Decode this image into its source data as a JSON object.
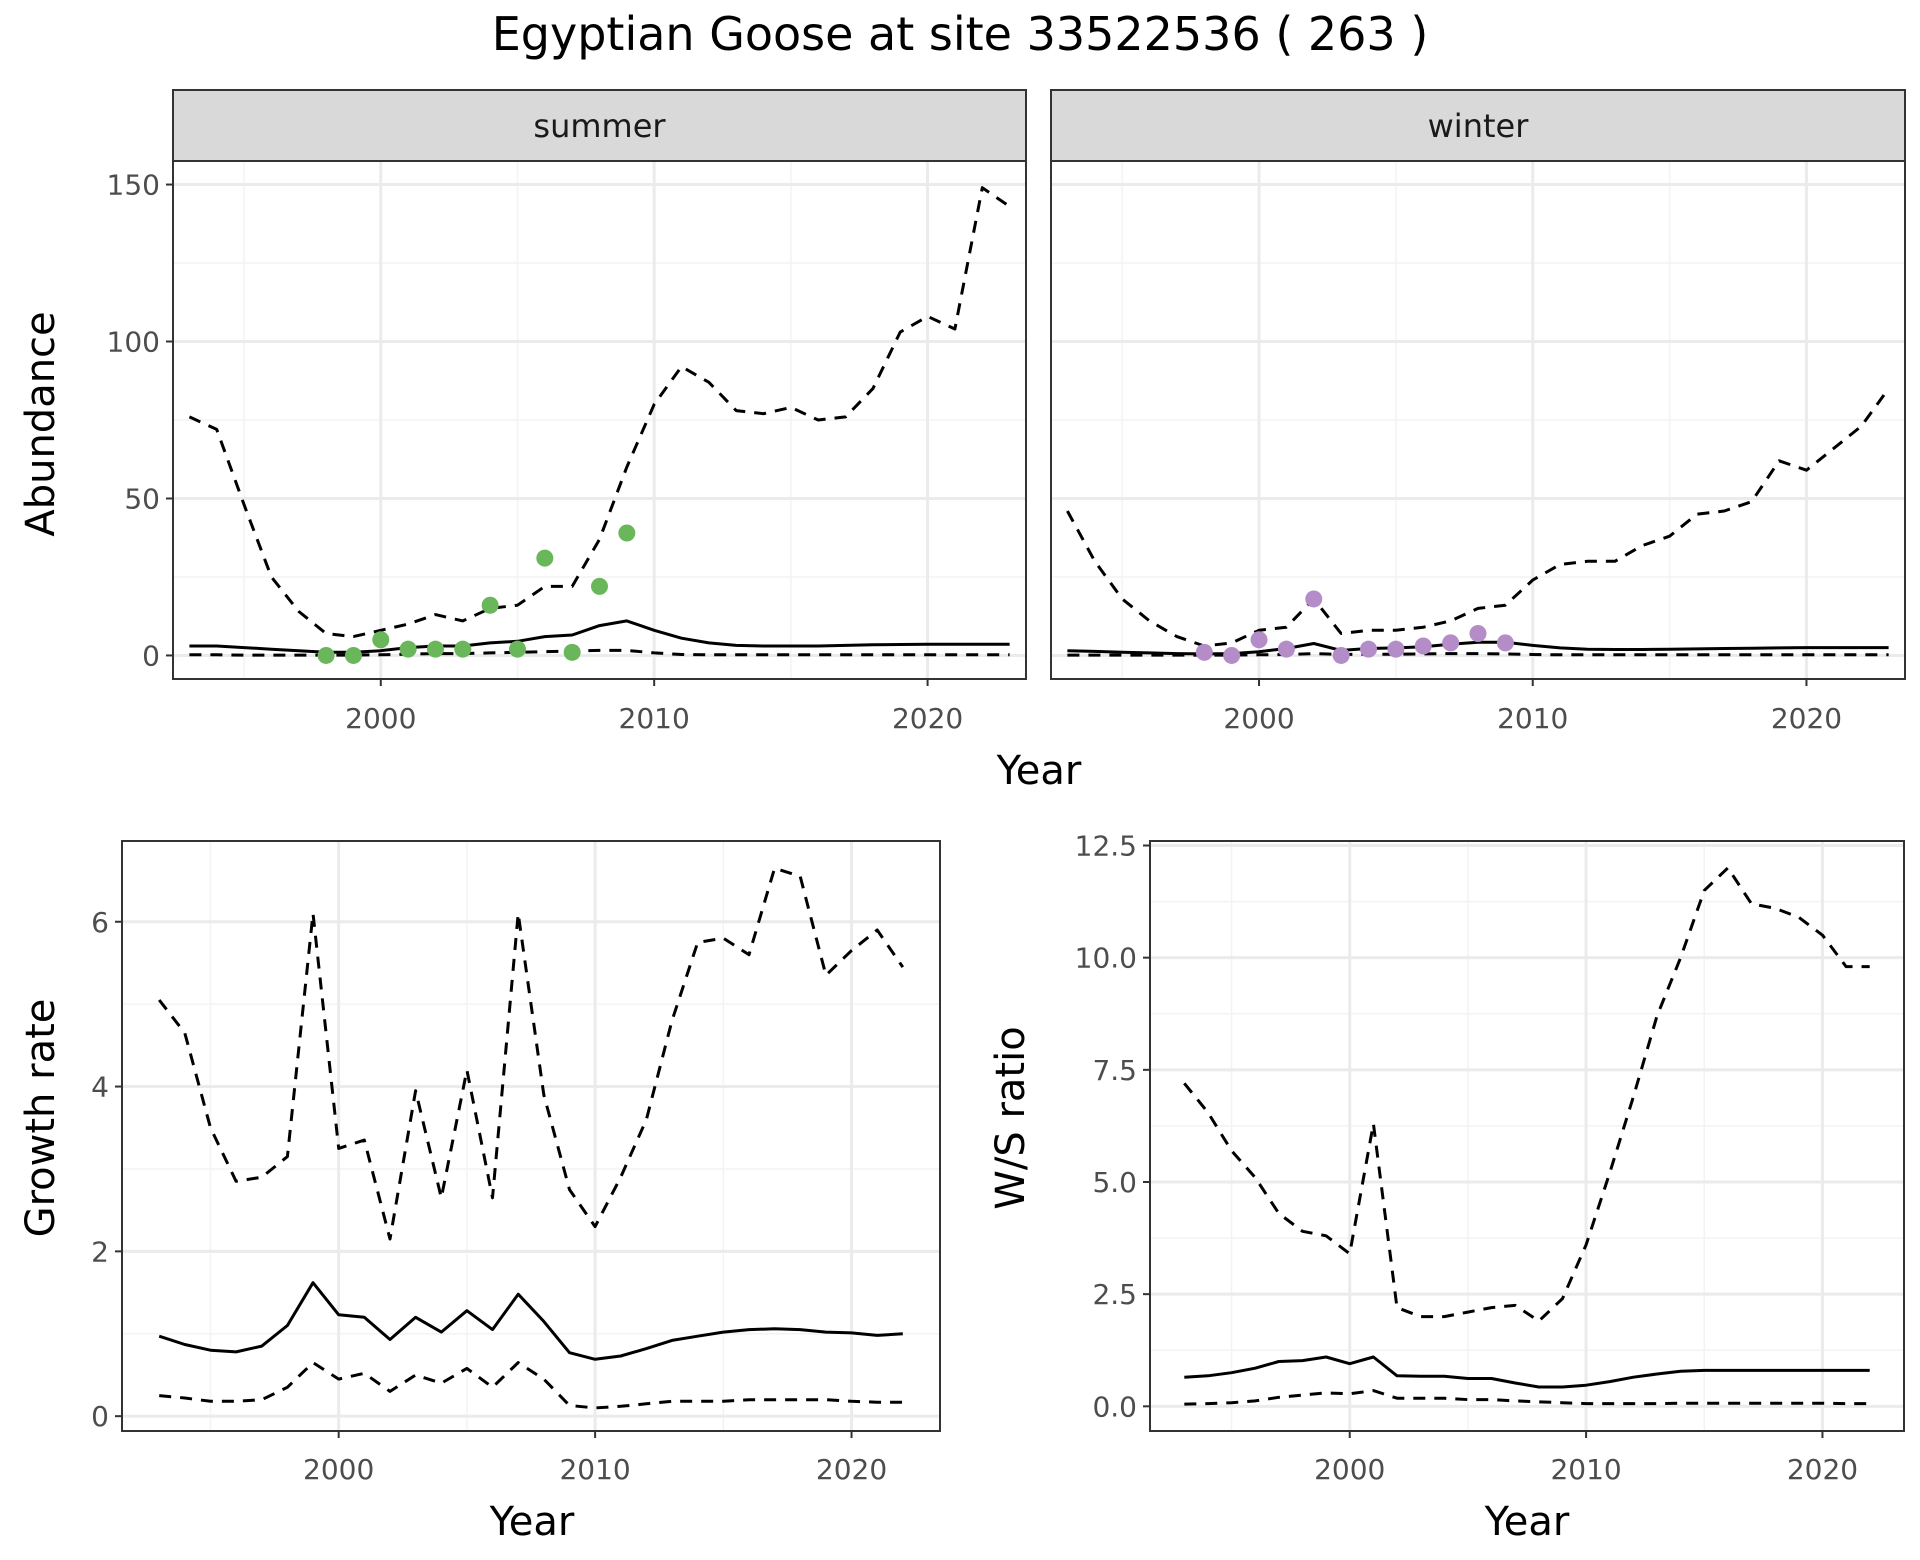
{
  "figure": {
    "title": "Egyptian Goose at site 33522536 ( 263 )"
  },
  "colors": {
    "summer_points": "#6ab65a",
    "winter_points": "#b48cc8",
    "line": "#000000",
    "strip_fill": "#d9d9d9",
    "grid_major": "#ebebeb",
    "grid_minor": "#f3f3f3"
  },
  "chart_data": [
    {
      "id": "summer",
      "type": "line",
      "strip_label": "summer",
      "xlabel": "Year",
      "ylabel": "Abundance",
      "xlim": [
        1992.4,
        2023.6
      ],
      "ylim": [
        -7.5,
        157.5
      ],
      "x_ticks": [
        2000,
        2010,
        2020
      ],
      "y_ticks": [
        0,
        50,
        100,
        150
      ],
      "grid": true,
      "series": [
        {
          "style": "solid",
          "x": [
            1993,
            1994,
            1995,
            1996,
            1997,
            1998,
            1999,
            2000,
            2001,
            2002,
            2003,
            2004,
            2005,
            2006,
            2007,
            2008,
            2009,
            2010,
            2011,
            2012,
            2013,
            2014,
            2015,
            2016,
            2017,
            2018,
            2019,
            2020,
            2021,
            2022,
            2023
          ],
          "values": [
            3,
            3,
            2.5,
            2,
            1.5,
            1,
            1,
            1.5,
            2.5,
            3,
            3,
            4,
            4.5,
            6,
            6.5,
            9.5,
            11,
            8,
            5.5,
            4,
            3.2,
            3,
            3,
            3,
            3.2,
            3.4,
            3.5,
            3.6,
            3.6,
            3.6,
            3.6
          ]
        },
        {
          "style": "dashed",
          "x": [
            1993,
            1994,
            1995,
            1996,
            1997,
            1998,
            1999,
            2000,
            2001,
            2002,
            2003,
            2004,
            2005,
            2006,
            2007,
            2008,
            2009,
            2010,
            2011,
            2012,
            2013,
            2014,
            2015,
            2016,
            2017,
            2018,
            2019,
            2020,
            2021,
            2022,
            2023
          ],
          "values": [
            76,
            72,
            48,
            25,
            14,
            7,
            6,
            8,
            10,
            13,
            11,
            15,
            16,
            22,
            22,
            37,
            60,
            80,
            92,
            87,
            78,
            77,
            79,
            75,
            76,
            85,
            103,
            108,
            104,
            149,
            143
          ]
        },
        {
          "style": "dashed",
          "x": [
            1993,
            1994,
            1995,
            1996,
            1997,
            1998,
            1999,
            2000,
            2001,
            2002,
            2003,
            2004,
            2005,
            2006,
            2007,
            2008,
            2009,
            2010,
            2011,
            2012,
            2013,
            2014,
            2015,
            2016,
            2017,
            2018,
            2019,
            2020,
            2021,
            2022,
            2023
          ],
          "values": [
            0.2,
            0.2,
            0.1,
            0.1,
            0.1,
            0.1,
            0.1,
            0.2,
            0.4,
            0.6,
            0.6,
            0.8,
            1,
            1.2,
            1.4,
            1.6,
            1.6,
            0.8,
            0.3,
            0.2,
            0.2,
            0.2,
            0.2,
            0.2,
            0.2,
            0.2,
            0.2,
            0.2,
            0.2,
            0.2,
            0.2
          ]
        },
        {
          "style": "points",
          "color_key": "summer_points",
          "x": [
            1998,
            1999,
            2000,
            2001,
            2002,
            2003,
            2004,
            2005,
            2006,
            2007,
            2008,
            2009
          ],
          "values": [
            0,
            0,
            5,
            2,
            2,
            2,
            16,
            2,
            31,
            1,
            22,
            39
          ]
        }
      ]
    },
    {
      "id": "winter",
      "type": "line",
      "strip_label": "winter",
      "xlabel": "Year",
      "ylabel": "Abundance",
      "xlim": [
        1992.4,
        2023.6
      ],
      "ylim": [
        -7.5,
        157.5
      ],
      "x_ticks": [
        2000,
        2010,
        2020
      ],
      "y_ticks": [
        0,
        50,
        100,
        150
      ],
      "grid": true,
      "series": [
        {
          "style": "solid",
          "x": [
            1993,
            1994,
            1995,
            1996,
            1997,
            1998,
            1999,
            2000,
            2001,
            2002,
            2003,
            2004,
            2005,
            2006,
            2007,
            2008,
            2009,
            2010,
            2011,
            2012,
            2013,
            2014,
            2015,
            2016,
            2017,
            2018,
            2019,
            2020,
            2021,
            2022,
            2023
          ],
          "values": [
            1.5,
            1.3,
            1,
            0.8,
            0.6,
            0.5,
            0.6,
            1.2,
            2.2,
            3.8,
            1.6,
            2.2,
            2.4,
            2.8,
            3.6,
            4.2,
            4.2,
            3.2,
            2.4,
            2,
            1.9,
            1.9,
            2,
            2.1,
            2.2,
            2.3,
            2.4,
            2.5,
            2.5,
            2.5,
            2.5
          ]
        },
        {
          "style": "dashed",
          "x": [
            1993,
            1994,
            1995,
            1996,
            1997,
            1998,
            1999,
            2000,
            2001,
            2002,
            2003,
            2004,
            2005,
            2006,
            2007,
            2008,
            2009,
            2010,
            2011,
            2012,
            2013,
            2014,
            2015,
            2016,
            2017,
            2018,
            2019,
            2020,
            2021,
            2022,
            2023
          ],
          "values": [
            46,
            30,
            18,
            11,
            6,
            3,
            4,
            8,
            9,
            18,
            7,
            8,
            8,
            9,
            11,
            15,
            16,
            24,
            29,
            30,
            30,
            35,
            38,
            45,
            46,
            49,
            62,
            59,
            66,
            73,
            85
          ]
        },
        {
          "style": "dashed",
          "x": [
            1993,
            1994,
            1995,
            1996,
            1997,
            1998,
            1999,
            2000,
            2001,
            2002,
            2003,
            2004,
            2005,
            2006,
            2007,
            2008,
            2009,
            2010,
            2011,
            2012,
            2013,
            2014,
            2015,
            2016,
            2017,
            2018,
            2019,
            2020,
            2021,
            2022,
            2023
          ],
          "values": [
            0.1,
            0.1,
            0.1,
            0.1,
            0.1,
            0.1,
            0.1,
            0.2,
            0.3,
            0.6,
            0.3,
            0.4,
            0.4,
            0.5,
            0.6,
            0.6,
            0.5,
            0.3,
            0.2,
            0.2,
            0.2,
            0.2,
            0.2,
            0.2,
            0.2,
            0.2,
            0.2,
            0.2,
            0.2,
            0.2,
            0.2
          ]
        },
        {
          "style": "points",
          "color_key": "winter_points",
          "x": [
            1998,
            1999,
            2000,
            2001,
            2002,
            2003,
            2004,
            2005,
            2006,
            2007,
            2008,
            2009
          ],
          "values": [
            1,
            0,
            5,
            2,
            18,
            0,
            2,
            2,
            3,
            4,
            7,
            4
          ]
        }
      ]
    },
    {
      "id": "growth",
      "type": "line",
      "xlabel": "Year",
      "ylabel": "Growth rate",
      "xlim": [
        1991.55,
        2023.45
      ],
      "ylim": [
        -0.18,
        6.98
      ],
      "x_ticks": [
        2000,
        2010,
        2020
      ],
      "y_ticks": [
        0,
        2,
        4,
        6
      ],
      "grid": true,
      "series": [
        {
          "style": "solid",
          "x": [
            1993,
            1994,
            1995,
            1996,
            1997,
            1998,
            1999,
            2000,
            2001,
            2002,
            2003,
            2004,
            2005,
            2006,
            2007,
            2008,
            2009,
            2010,
            2011,
            2012,
            2013,
            2014,
            2015,
            2016,
            2017,
            2018,
            2019,
            2020,
            2021,
            2022
          ],
          "values": [
            0.97,
            0.87,
            0.8,
            0.78,
            0.85,
            1.1,
            1.62,
            1.23,
            1.2,
            0.93,
            1.2,
            1.02,
            1.28,
            1.05,
            1.48,
            1.15,
            0.77,
            0.69,
            0.73,
            0.82,
            0.92,
            0.97,
            1.02,
            1.05,
            1.06,
            1.05,
            1.02,
            1.01,
            0.98,
            1.0
          ]
        },
        {
          "style": "dashed",
          "x": [
            1993,
            1994,
            1995,
            1996,
            1997,
            1998,
            1999,
            2000,
            2001,
            2002,
            2003,
            2004,
            2005,
            2006,
            2007,
            2008,
            2009,
            2010,
            2011,
            2012,
            2013,
            2014,
            2015,
            2016,
            2017,
            2018,
            2019,
            2020,
            2021,
            2022
          ],
          "values": [
            5.05,
            4.65,
            3.5,
            2.85,
            2.9,
            3.15,
            6.1,
            3.25,
            3.35,
            2.15,
            3.95,
            2.65,
            4.2,
            2.65,
            6.1,
            3.9,
            2.75,
            2.3,
            2.9,
            3.6,
            4.8,
            5.75,
            5.8,
            5.6,
            6.65,
            6.55,
            5.35,
            5.65,
            5.9,
            5.45
          ]
        },
        {
          "style": "dashed",
          "x": [
            1993,
            1994,
            1995,
            1996,
            1997,
            1998,
            1999,
            2000,
            2001,
            2002,
            2003,
            2004,
            2005,
            2006,
            2007,
            2008,
            2009,
            2010,
            2011,
            2012,
            2013,
            2014,
            2015,
            2016,
            2017,
            2018,
            2019,
            2020,
            2021,
            2022
          ],
          "values": [
            0.25,
            0.22,
            0.18,
            0.18,
            0.2,
            0.35,
            0.65,
            0.45,
            0.52,
            0.3,
            0.5,
            0.4,
            0.58,
            0.35,
            0.65,
            0.45,
            0.13,
            0.1,
            0.12,
            0.15,
            0.18,
            0.18,
            0.18,
            0.2,
            0.2,
            0.2,
            0.2,
            0.18,
            0.17,
            0.17
          ]
        }
      ]
    },
    {
      "id": "ws_ratio",
      "type": "line",
      "xlabel": "Year",
      "ylabel": "W/S ratio",
      "xlim": [
        1991.55,
        2023.45
      ],
      "ylim": [
        -0.55,
        12.6
      ],
      "x_ticks": [
        2000,
        2010,
        2020
      ],
      "y_ticks": [
        0.0,
        2.5,
        5.0,
        7.5,
        10.0,
        12.5
      ],
      "y_tick_labels": [
        "0.0",
        "2.5",
        "5.0",
        "7.5",
        "10.0",
        "12.5"
      ],
      "grid": true,
      "series": [
        {
          "style": "solid",
          "x": [
            1993,
            1994,
            1995,
            1996,
            1997,
            1998,
            1999,
            2000,
            2001,
            2002,
            2003,
            2004,
            2005,
            2006,
            2007,
            2008,
            2009,
            2010,
            2011,
            2012,
            2013,
            2014,
            2015,
            2016,
            2017,
            2018,
            2019,
            2020,
            2021,
            2022
          ],
          "values": [
            0.65,
            0.68,
            0.75,
            0.85,
            1.0,
            1.02,
            1.1,
            0.95,
            1.1,
            0.68,
            0.67,
            0.67,
            0.62,
            0.62,
            0.52,
            0.43,
            0.43,
            0.47,
            0.55,
            0.65,
            0.72,
            0.78,
            0.8,
            0.8,
            0.8,
            0.8,
            0.8,
            0.8,
            0.8,
            0.8
          ]
        },
        {
          "style": "dashed",
          "x": [
            1993,
            1994,
            1995,
            1996,
            1997,
            1998,
            1999,
            2000,
            2001,
            2002,
            2003,
            2004,
            2005,
            2006,
            2007,
            2008,
            2009,
            2010,
            2011,
            2012,
            2013,
            2014,
            2015,
            2016,
            2017,
            2018,
            2019,
            2020,
            2021,
            2022
          ],
          "values": [
            7.2,
            6.55,
            5.7,
            5.1,
            4.3,
            3.9,
            3.8,
            3.4,
            6.3,
            2.2,
            2.0,
            2.0,
            2.1,
            2.2,
            2.25,
            1.9,
            2.4,
            3.6,
            5.2,
            6.9,
            8.7,
            10.0,
            11.5,
            12.0,
            11.2,
            11.1,
            10.9,
            10.5,
            9.8,
            9.8
          ]
        },
        {
          "style": "dashed",
          "x": [
            1993,
            1994,
            1995,
            1996,
            1997,
            1998,
            1999,
            2000,
            2001,
            2002,
            2003,
            2004,
            2005,
            2006,
            2007,
            2008,
            2009,
            2010,
            2011,
            2012,
            2013,
            2014,
            2015,
            2016,
            2017,
            2018,
            2019,
            2020,
            2021,
            2022
          ],
          "values": [
            0.05,
            0.06,
            0.08,
            0.12,
            0.2,
            0.25,
            0.3,
            0.28,
            0.35,
            0.18,
            0.18,
            0.18,
            0.15,
            0.15,
            0.12,
            0.1,
            0.08,
            0.06,
            0.06,
            0.06,
            0.06,
            0.07,
            0.07,
            0.07,
            0.07,
            0.07,
            0.07,
            0.07,
            0.06,
            0.06
          ]
        }
      ]
    }
  ]
}
